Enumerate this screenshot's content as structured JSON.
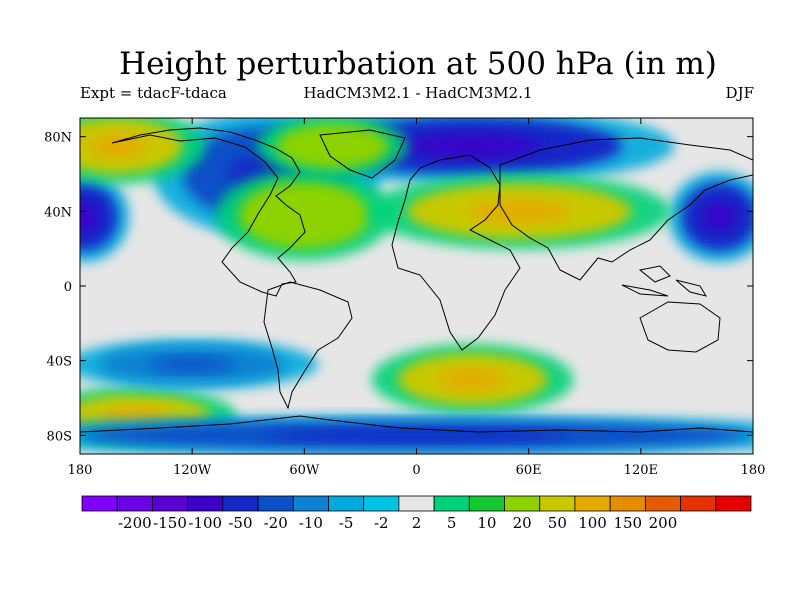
{
  "title": "Height perturbation at 500 hPa (in m)",
  "experiment_label": "Expt = tdacF-tdaca",
  "model_label": "HadCM3M2.1 - HadCM3M2.1",
  "season_label": "DJF",
  "map": {
    "projection": "cylindrical equidistant",
    "lon_range": [
      -180,
      180
    ],
    "lat_range": [
      -90,
      90
    ],
    "x_ticks": [
      {
        "lon": -180,
        "label": "180"
      },
      {
        "lon": -120,
        "label": "120W"
      },
      {
        "lon": -60,
        "label": "60W"
      },
      {
        "lon": 0,
        "label": "0"
      },
      {
        "lon": 60,
        "label": "60E"
      },
      {
        "lon": 120,
        "label": "120E"
      },
      {
        "lon": 180,
        "label": "180"
      }
    ],
    "y_ticks": [
      {
        "lat": 80,
        "label": "80N"
      },
      {
        "lat": 40,
        "label": "40N"
      },
      {
        "lat": 0,
        "label": "0"
      },
      {
        "lat": -40,
        "label": "40S"
      },
      {
        "lat": -80,
        "label": "80S"
      }
    ],
    "colors": {
      "neutral": "#e6e6e6",
      "coastline": "#000000"
    },
    "regions": [
      {
        "name": "Negative anomaly, Aleutian / North Pacific",
        "lon": -178,
        "lat": 37,
        "rx": 18,
        "ry": 18,
        "level": -50
      },
      {
        "name": "Negative anomaly, North Pacific (east of dateline)",
        "lon": 162,
        "lat": 37,
        "rx": 20,
        "ry": 18,
        "level": -50
      },
      {
        "name": "Negative anomaly, Canada / Hudson Bay",
        "lon": -80,
        "lat": 60,
        "rx": 45,
        "ry": 25,
        "level": -20
      },
      {
        "name": "Negative anomaly, Arctic / Siberia",
        "lon": 30,
        "lat": 75,
        "rx": 80,
        "ry": 15,
        "level": -50
      },
      {
        "name": "Positive anomaly, Alaska",
        "lon": -160,
        "lat": 75,
        "rx": 35,
        "ry": 15,
        "level": 50
      },
      {
        "name": "Positive anomaly, western Atlantic",
        "lon": -60,
        "lat": 38,
        "rx": 35,
        "ry": 18,
        "level": 20
      },
      {
        "name": "Positive anomaly, Eurasia belt",
        "lon": 55,
        "lat": 40,
        "rx": 60,
        "ry": 15,
        "level": 50
      },
      {
        "name": "Positive anomaly, Greenland",
        "lon": -45,
        "lat": 75,
        "rx": 30,
        "ry": 12,
        "level": 20
      },
      {
        "name": "Positive anomaly, South Atlantic / Africa",
        "lon": 30,
        "lat": -50,
        "rx": 40,
        "ry": 14,
        "level": 50
      },
      {
        "name": "Positive anomaly, South Pacific",
        "lon": -150,
        "lat": -70,
        "rx": 40,
        "ry": 12,
        "level": 50
      },
      {
        "name": "Negative anomaly, South Pacific",
        "lon": -120,
        "lat": -42,
        "rx": 50,
        "ry": 10,
        "level": -10
      },
      {
        "name": "Negative anomaly, Antarctic",
        "lon": 0,
        "lat": -80,
        "rx": 180,
        "ry": 8,
        "level": -20
      }
    ]
  },
  "colorbar": {
    "colors": [
      "#7f00ff",
      "#6c00e6",
      "#5a00d2",
      "#3c00c8",
      "#1428c8",
      "#0a50c8",
      "#0a82d2",
      "#00aadc",
      "#00c3e6",
      "#e6e6e6",
      "#00d278",
      "#14c832",
      "#8cd200",
      "#c8c800",
      "#e6aa00",
      "#e68c00",
      "#e65a00",
      "#e63200",
      "#e60000"
    ],
    "labels": [
      "-200",
      "-150",
      "-100",
      "-50",
      "-20",
      "-10",
      "-5",
      "-2",
      "2",
      "5",
      "10",
      "20",
      "50",
      "100",
      "150",
      "200"
    ],
    "levels": [
      -200,
      -150,
      -100,
      -50,
      -20,
      -10,
      -5,
      -2,
      2,
      5,
      10,
      20,
      50,
      100,
      150,
      200
    ]
  }
}
